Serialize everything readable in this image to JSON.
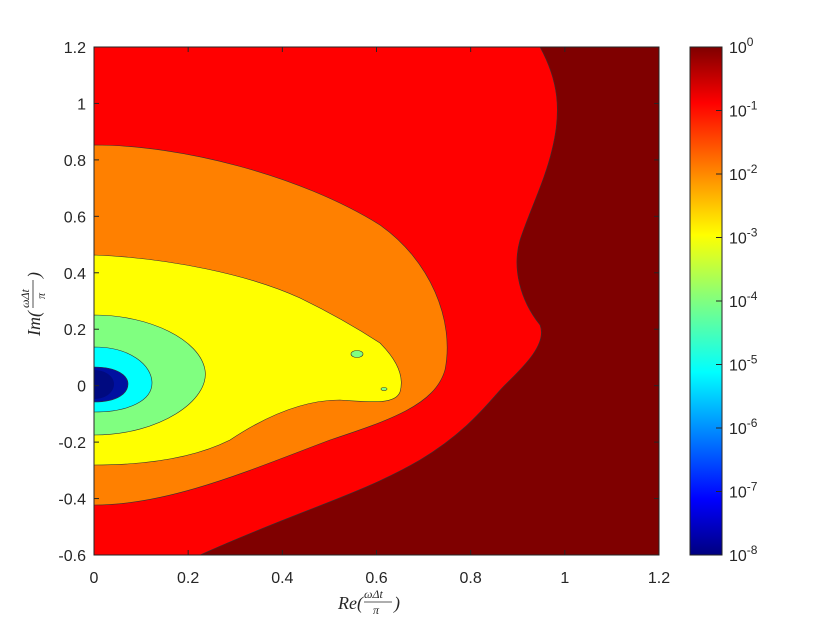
{
  "chart_data": {
    "type": "heatmap",
    "title": "",
    "xlabel": "Re(ωΔt/π)",
    "ylabel": "Im(ωΔt/π)",
    "xlim": [
      0,
      1.2
    ],
    "ylim": [
      -0.6,
      1.2
    ],
    "x_ticks": [
      "0",
      "0.2",
      "0.4",
      "0.6",
      "0.8",
      "1",
      "1.2"
    ],
    "y_ticks": [
      "-0.6",
      "-0.4",
      "-0.2",
      "0",
      "0.2",
      "0.4",
      "0.6",
      "0.8",
      "1",
      "1.2"
    ],
    "grid": false,
    "scale": "log",
    "colormap": "jet",
    "colorbar": {
      "range": [
        1e-08,
        1
      ],
      "tick_bases": [
        "10",
        "10",
        "10",
        "10",
        "10",
        "10",
        "10",
        "10",
        "10"
      ],
      "tick_exponents": [
        "-8",
        "-7",
        "-6",
        "-5",
        "-4",
        "-3",
        "-2",
        "-1",
        "0"
      ]
    },
    "levels": [
      {
        "level": "10^0",
        "color": "#7f0000",
        "region": "x > ~0.95 (rightmost band)"
      },
      {
        "level": "10^-1",
        "color": "#ff0000",
        "region": "x up to ~0.95"
      },
      {
        "level": "10^-2",
        "color": "#ff8000",
        "boundary_x_at_y0": 0.72,
        "boundary_y_max": 0.85,
        "boundary_y_min": -0.42
      },
      {
        "level": "10^-3",
        "color": "#ffff00",
        "boundary_x_at_y0": 0.65,
        "boundary_y_max": 0.46,
        "boundary_y_min": -0.28
      },
      {
        "level": "10^-4",
        "color": "#80ff80",
        "boundary_x_at_y0": 0.24,
        "boundary_y_max": 0.25,
        "boundary_y_min": -0.17
      },
      {
        "level": "10^-5",
        "color": "#00ffff",
        "boundary_x_at_y0": 0.12,
        "boundary_y_max": 0.08,
        "boundary_y_min": -0.08
      },
      {
        "level": "10^-6",
        "color": "#0010a0",
        "boundary_x_at_y0": 0.07,
        "boundary_y_max": 0.06,
        "boundary_y_min": -0.06
      }
    ]
  }
}
